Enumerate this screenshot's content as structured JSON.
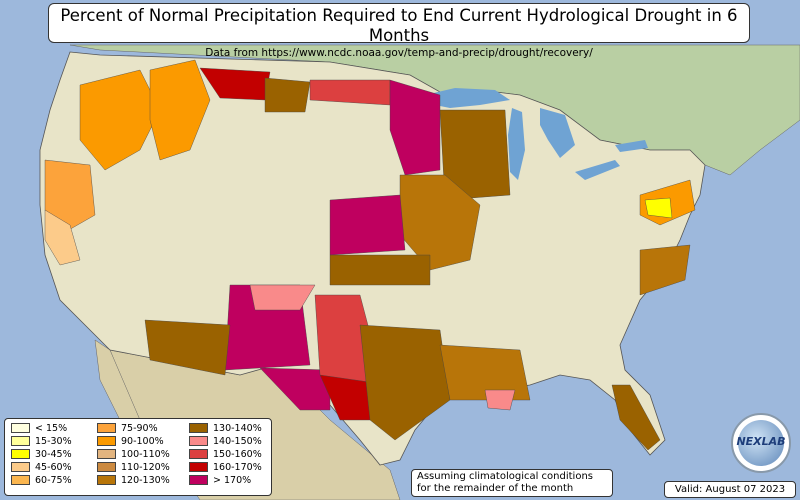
{
  "title": "Percent of Normal Precipitation Required to End Current Hydrological Drought in 6 Months",
  "subtitle": "Data from https://www.ncdc.noaa.gov/temp-and-precip/drought/recovery/",
  "legend": [
    {
      "label": "< 15%",
      "color": "#ffffe0"
    },
    {
      "label": "15-30%",
      "color": "#ffff99"
    },
    {
      "label": "30-45%",
      "color": "#ffff00"
    },
    {
      "label": "45-60%",
      "color": "#fccb8a"
    },
    {
      "label": "60-75%",
      "color": "#fbb64f"
    },
    {
      "label": "75-90%",
      "color": "#fca33b"
    },
    {
      "label": "90-100%",
      "color": "#fb9a00"
    },
    {
      "label": "100-110%",
      "color": "#e2b47f"
    },
    {
      "label": "110-120%",
      "color": "#cc8a40"
    },
    {
      "label": "120-130%",
      "color": "#b87509"
    },
    {
      "label": "130-140%",
      "color": "#9a6200"
    },
    {
      "label": "140-150%",
      "color": "#f98a8a"
    },
    {
      "label": "150-160%",
      "color": "#dc4040"
    },
    {
      "label": "160-170%",
      "color": "#c20000"
    },
    {
      "label": "> 170%",
      "color": "#bf005f"
    }
  ],
  "note_line1": "Assuming climatological conditions",
  "note_line2": "for the remainder of the month",
  "valid": "Valid: August 07 2023",
  "logo_text": "NEXLAB",
  "colors": {
    "ocean": "#9db8dc",
    "land": "#e8e4c8",
    "canada": "#b9cfa3",
    "mexico": "#d9cfa8",
    "lakes": "#6fa3d3"
  }
}
